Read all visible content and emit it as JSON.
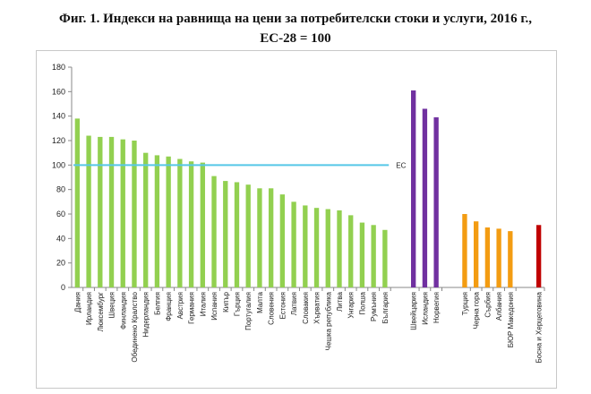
{
  "title": {
    "line1": "Фиг. 1. Индекси на равнища на цени за потребителски стоки и услуги, 2016 г.,",
    "line2": "ЕС-28 = 100"
  },
  "chart_data": {
    "type": "bar",
    "title": "Фиг. 1. Индекси на равнища на цени за потребителски стоки и услуги, 2016 г., ЕС-28 = 100",
    "xlabel": "",
    "ylabel": "",
    "ylim": [
      0,
      180
    ],
    "yticks": [
      0,
      20,
      40,
      60,
      80,
      100,
      120,
      140,
      160,
      180
    ],
    "grid": false,
    "legend": "none",
    "reference_line": {
      "label": "ЕС",
      "value": 100,
      "color": "#56c8e8"
    },
    "groups": [
      {
        "color": "#92d050",
        "categories": [
          "Дания",
          "Ирландия",
          "Люксембург",
          "Швеция",
          "Финландия",
          "Обединено Кралство",
          "Нидерландия",
          "Белгия",
          "Франция",
          "Австрия",
          "Германия",
          "Италия",
          "Испания",
          "Кипър",
          "Гърция",
          "Португалия",
          "Малта",
          "Словения",
          "Естония",
          "Латвия",
          "Словакия",
          "Хърватия",
          "Чешка република",
          "Литва",
          "Унгария",
          "Полша",
          "Румъния",
          "България"
        ],
        "values": [
          138,
          124,
          123,
          123,
          121,
          120,
          110,
          108,
          107,
          105,
          103,
          102,
          91,
          87,
          86,
          84,
          81,
          81,
          76,
          70,
          67,
          65,
          64,
          63,
          59,
          53,
          51,
          47
        ]
      },
      {
        "color": "#7030a0",
        "categories": [
          "Швейцария",
          "Исландия",
          "Норвегия"
        ],
        "values": [
          161,
          146,
          139
        ]
      },
      {
        "color": "#f39c12",
        "categories": [
          "Турция",
          "Черна гора",
          "Сърбия",
          "Албания",
          "БЮР Македония"
        ],
        "values": [
          60,
          54,
          49,
          48,
          46
        ]
      },
      {
        "color": "#c00000",
        "categories": [
          "Босна и Херцеговина"
        ],
        "values": [
          51
        ]
      }
    ]
  }
}
